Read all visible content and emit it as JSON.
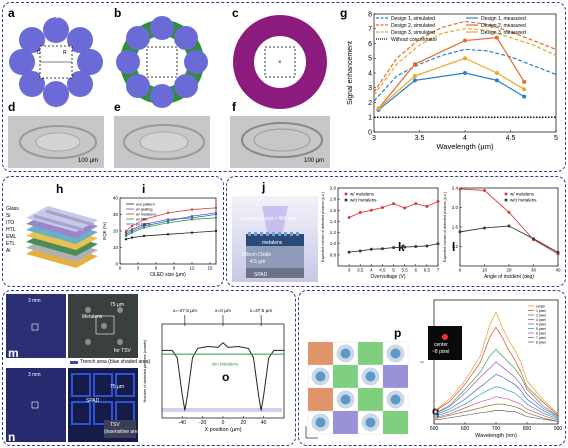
{
  "panel_labels": {
    "a": "a",
    "b": "b",
    "c": "c",
    "d": "d",
    "e": "e",
    "f": "f",
    "g": "g",
    "h": "h",
    "i": "i",
    "j": "j",
    "k": "k",
    "l": "l",
    "m": "m",
    "n": "n",
    "o": "o",
    "p": "p",
    "q": "q"
  },
  "panel_a": {
    "top_dim": "D=50 µm",
    "left_dim": "D",
    "right_dim": "R"
  },
  "scale_bar": "100 µm",
  "panel_h": {
    "layers": [
      "Glass",
      "Si",
      "ITO",
      "HTL",
      "EML",
      "ETL",
      "Al"
    ]
  },
  "panel_j": {
    "incident": "Incident photon / 404 nm",
    "metalens": "metalens",
    "silicon": "Silicon Oxide",
    "dims": "4.5 µm",
    "spad": "SPAD"
  },
  "panel_m": {
    "scale_small": "3 mm",
    "scale_large": "75 µm",
    "label": "Metalens",
    "sublabel": "for TSV",
    "legend": "Trench area (blue shaded area)"
  },
  "panel_n": {
    "scale_small": "3 mm",
    "scale_large": "75 µm",
    "spad": "SPAD",
    "tsv": "TSV",
    "tsv_sub": "(insensitive area)"
  },
  "panel_q_inset": {
    "center": "center",
    "shift": "~8 pixel"
  },
  "chart_data": [
    {
      "id": "g",
      "type": "line",
      "title": "",
      "xlabel": "Wavelength (µm)",
      "ylabel": "Signal enhancement",
      "xlim": [
        3,
        5
      ],
      "ylim": [
        0,
        8
      ],
      "xticks": [
        "3",
        "3.5",
        "4",
        "4.5",
        "5"
      ],
      "yticks": [
        "0",
        "1",
        "2",
        "3",
        "4",
        "5",
        "6",
        "7",
        "8"
      ],
      "legend": [
        "Design 1, simulated",
        "Design 2, simulated",
        "Design 3, simulated",
        "Without concentrator",
        "Design 1, measured",
        "Design 2, measured",
        "Design 3, measured"
      ],
      "colors": {
        "d1": "#2e80c8",
        "d2": "#e8692d",
        "d3": "#eaa72a",
        "base": "#111111"
      },
      "series": [
        {
          "name": "Design 1, simulated",
          "style": "dashed",
          "color": "#2e80c8",
          "x": [
            3,
            3.25,
            3.5,
            3.75,
            4,
            4.25,
            4.5,
            4.75,
            5
          ],
          "y": [
            2.1,
            3.8,
            4.6,
            5.2,
            5.6,
            5.5,
            5.1,
            4.5,
            3.9
          ]
        },
        {
          "name": "Design 2, simulated",
          "style": "dashed",
          "color": "#e8692d",
          "x": [
            3,
            3.25,
            3.5,
            3.75,
            4,
            4.25,
            4.5,
            4.75,
            5
          ],
          "y": [
            2.7,
            5.0,
            6.3,
            7.1,
            7.5,
            7.3,
            6.8,
            6.2,
            5.6
          ]
        },
        {
          "name": "Design 3, simulated",
          "style": "dashed",
          "color": "#eaa72a",
          "x": [
            3,
            3.25,
            3.5,
            3.75,
            4,
            4.25,
            4.5,
            4.75,
            5
          ],
          "y": [
            2.5,
            4.6,
            5.9,
            6.7,
            7.0,
            6.9,
            6.4,
            5.9,
            5.2
          ]
        },
        {
          "name": "Without concentrator",
          "style": "dotted",
          "color": "#111111",
          "x": [
            3,
            5
          ],
          "y": [
            1,
            1
          ]
        },
        {
          "name": "Design 1, measured",
          "style": "solid",
          "color": "#2e80c8",
          "x": [
            3.05,
            3.45,
            4.0,
            4.35,
            4.65
          ],
          "y": [
            1.5,
            3.5,
            4.0,
            3.5,
            2.4
          ]
        },
        {
          "name": "Design 2, measured",
          "style": "solid",
          "color": "#e8692d",
          "x": [
            3.05,
            3.45,
            4.0,
            4.35,
            4.65
          ],
          "y": [
            1.6,
            4.6,
            6.2,
            6.4,
            3.4
          ]
        },
        {
          "name": "Design 3, measured",
          "style": "solid",
          "color": "#eaa72a",
          "x": [
            3.05,
            3.45,
            4.0,
            4.35,
            4.65
          ],
          "y": [
            1.6,
            3.8,
            5.0,
            4.0,
            2.9
          ]
        }
      ]
    },
    {
      "id": "i",
      "type": "line",
      "xlabel": "OLED size (µm)",
      "ylabel": "EQE (%)",
      "xlim": [
        0,
        16
      ],
      "ylim": [
        0,
        40
      ],
      "xticks": [
        "0",
        "3",
        "6",
        "9",
        "12",
        "15"
      ],
      "yticks": [
        "0",
        "10",
        "20",
        "30",
        "40"
      ],
      "legend": [
        "w/o pattern",
        "w/ grating",
        "w/ metalens",
        "w/ FOL",
        "w/ DROL"
      ],
      "series": [
        {
          "name": "w/o pattern",
          "color": "#222222",
          "x": [
            1,
            2,
            4,
            8,
            12,
            16
          ],
          "y": [
            15,
            16,
            17,
            18,
            19,
            20
          ]
        },
        {
          "name": "w/ grating",
          "color": "#7b4fb0",
          "x": [
            1,
            2,
            4,
            8,
            12,
            16
          ],
          "y": [
            19,
            21,
            24,
            27,
            28,
            30
          ]
        },
        {
          "name": "w/ metalens",
          "color": "#d93b3b",
          "x": [
            1,
            2,
            4,
            8,
            12,
            16
          ],
          "y": [
            20,
            23,
            27,
            31,
            33,
            34
          ]
        },
        {
          "name": "w/ FOL",
          "color": "#2b9a4a",
          "x": [
            1,
            2,
            4,
            8,
            12,
            16
          ],
          "y": [
            17,
            19,
            22,
            25,
            27,
            28
          ]
        },
        {
          "name": "w/ DROL",
          "color": "#2a6fc0",
          "x": [
            1,
            2,
            4,
            8,
            12,
            16
          ],
          "y": [
            18,
            20,
            23,
            26,
            29,
            31
          ]
        }
      ]
    },
    {
      "id": "k",
      "type": "line",
      "xlabel": "Overvoltage (V)",
      "ylabel": "Expected number of detected photons (p.u.)",
      "xlim": [
        2.5,
        7
      ],
      "ylim": [
        0.6,
        2.0
      ],
      "xticks": [
        "3",
        "3.5",
        "4",
        "4.5",
        "5",
        "5.5",
        "6",
        "6.5",
        "7"
      ],
      "yticks": [
        "0.8",
        "1.0",
        "1.2",
        "1.4",
        "1.6",
        "1.8",
        "2.0"
      ],
      "legend": [
        "w/ metalens",
        "w/o metalens"
      ],
      "series": [
        {
          "name": "w/ metalens",
          "color": "#d93b3b",
          "x": [
            3,
            3.5,
            4,
            4.5,
            5,
            5.5,
            6,
            6.5,
            7
          ],
          "y": [
            1.47,
            1.56,
            1.6,
            1.65,
            1.72,
            1.64,
            1.72,
            1.67,
            1.76
          ]
        },
        {
          "name": "w/o metalens",
          "color": "#3a3a3a",
          "x": [
            3,
            3.5,
            4,
            4.5,
            5,
            5.5,
            6,
            6.5,
            7
          ],
          "y": [
            0.85,
            0.87,
            0.9,
            0.91,
            0.93,
            0.94,
            0.95,
            0.96,
            1.0
          ]
        }
      ]
    },
    {
      "id": "l",
      "type": "line",
      "xlabel": "Angle of incident (deg)",
      "ylabel": "Expected number of detected photons (p.u.)",
      "xlim": [
        0,
        40
      ],
      "ylim": [
        0.8,
        2.4
      ],
      "xticks": [
        "0",
        "10",
        "20",
        "30",
        "40"
      ],
      "yticks": [
        "1.2",
        "1.6",
        "2.0",
        "2.4"
      ],
      "legend": [
        "w/ metalens",
        "w/o metalens"
      ],
      "series": [
        {
          "name": "w/ metalens",
          "color": "#d93b3b",
          "x": [
            0,
            10,
            20,
            30,
            40
          ],
          "y": [
            2.38,
            2.35,
            1.9,
            1.34,
            1.05
          ]
        },
        {
          "name": "w/o metalens",
          "color": "#3a3a3a",
          "x": [
            0,
            10,
            20,
            30,
            40
          ],
          "y": [
            1.5,
            1.58,
            1.62,
            1.36,
            1.08
          ]
        }
      ]
    },
    {
      "id": "o",
      "type": "line",
      "xlabel": "X position (µm)",
      "ylabel": "Number of detected photons (counts)",
      "xlim": [
        -60,
        60
      ],
      "ylim": [
        1500,
        1750
      ],
      "xticks": [
        "-40",
        "-20",
        "0",
        "20",
        "40"
      ],
      "annotations": [
        "x=-37.5 µm",
        "x=0 µm",
        "x=37.5 µm",
        "w/o Metalens"
      ],
      "series": [
        {
          "name": "",
          "color": "#222222",
          "x": [
            -60,
            -50,
            -45,
            -40,
            -37.5,
            -35,
            -30,
            -25,
            -15,
            -5,
            0,
            5,
            15,
            25,
            30,
            35,
            37.5,
            40,
            45,
            50,
            60
          ],
          "y": [
            1680,
            1680,
            1660,
            1560,
            1520,
            1560,
            1660,
            1685,
            1690,
            1688,
            1700,
            1688,
            1690,
            1685,
            1660,
            1560,
            1520,
            1560,
            1660,
            1680,
            1680
          ]
        },
        {
          "name": "w/o Metalens",
          "color": "#2b9a4a",
          "x": [
            -60,
            60
          ],
          "y": [
            1670,
            1670
          ]
        }
      ]
    },
    {
      "id": "q",
      "type": "line",
      "xlabel": "Wavelength (nm)",
      "ylabel": "I",
      "xlim": [
        500,
        900
      ],
      "ylim": [
        0,
        1
      ],
      "xticks": [
        "500",
        "600",
        "700",
        "800",
        "900"
      ],
      "legend": [
        "center",
        "1 pixel",
        "2 pixel",
        "3 pixel",
        "4 pixel",
        "5 pixel",
        "6 pixel",
        "7 pixel",
        "8 pixel"
      ],
      "series": [
        {
          "name": "center",
          "color": "#e0a030",
          "x": [
            500,
            550,
            600,
            650,
            680,
            700,
            720,
            740,
            760,
            780,
            800,
            850,
            900
          ],
          "y": [
            0.1,
            0.2,
            0.35,
            0.55,
            0.8,
            0.9,
            0.78,
            0.68,
            0.6,
            0.5,
            0.35,
            0.2,
            0.08
          ]
        },
        {
          "name": "1 pixel",
          "color": "#d05030",
          "x": [
            500,
            550,
            600,
            650,
            680,
            700,
            720,
            740,
            760,
            780,
            800,
            850,
            900
          ],
          "y": [
            0.1,
            0.18,
            0.32,
            0.5,
            0.7,
            0.78,
            0.7,
            0.6,
            0.52,
            0.42,
            0.3,
            0.18,
            0.07
          ]
        },
        {
          "name": "2 pixel",
          "color": "#3aa050",
          "x": [
            500,
            550,
            600,
            650,
            680,
            700,
            720,
            740,
            760,
            780,
            800,
            850,
            900
          ],
          "y": [
            0.08,
            0.15,
            0.28,
            0.42,
            0.55,
            0.6,
            0.55,
            0.5,
            0.45,
            0.38,
            0.28,
            0.15,
            0.06
          ]
        },
        {
          "name": "3 pixel",
          "color": "#9b59b6",
          "x": [
            500,
            550,
            600,
            650,
            680,
            700,
            720,
            740,
            760,
            780,
            800,
            850,
            900
          ],
          "y": [
            0.08,
            0.14,
            0.25,
            0.38,
            0.45,
            0.5,
            0.46,
            0.42,
            0.38,
            0.32,
            0.24,
            0.13,
            0.06
          ]
        },
        {
          "name": "4 pixel",
          "color": "#4a6fd0",
          "x": [
            500,
            550,
            600,
            650,
            680,
            700,
            720,
            740,
            760,
            780,
            800,
            850,
            900
          ],
          "y": [
            0.07,
            0.12,
            0.2,
            0.3,
            0.36,
            0.4,
            0.38,
            0.35,
            0.32,
            0.27,
            0.2,
            0.11,
            0.05
          ]
        },
        {
          "name": "5 pixel",
          "color": "#2a9aa8",
          "x": [
            500,
            550,
            600,
            650,
            680,
            700,
            720,
            740,
            760,
            780,
            800,
            850,
            900
          ],
          "y": [
            0.06,
            0.1,
            0.16,
            0.24,
            0.28,
            0.3,
            0.29,
            0.27,
            0.25,
            0.21,
            0.16,
            0.09,
            0.04
          ]
        },
        {
          "name": "6 pixel",
          "color": "#c05a9a",
          "x": [
            500,
            550,
            600,
            650,
            680,
            700,
            720,
            740,
            760,
            780,
            800,
            850,
            900
          ],
          "y": [
            0.05,
            0.08,
            0.13,
            0.18,
            0.2,
            0.22,
            0.21,
            0.2,
            0.18,
            0.16,
            0.12,
            0.07,
            0.03
          ]
        },
        {
          "name": "7 pixel",
          "color": "#8a7a2a",
          "x": [
            500,
            550,
            600,
            650,
            680,
            700,
            720,
            740,
            760,
            780,
            800,
            850,
            900
          ],
          "y": [
            0.04,
            0.07,
            0.1,
            0.13,
            0.15,
            0.16,
            0.16,
            0.15,
            0.14,
            0.12,
            0.09,
            0.05,
            0.02
          ]
        },
        {
          "name": "8 pixel",
          "color": "#6a6a6a",
          "x": [
            500,
            550,
            600,
            650,
            680,
            700,
            720,
            740,
            760,
            780,
            800,
            850,
            900
          ],
          "y": [
            0.03,
            0.05,
            0.07,
            0.09,
            0.1,
            0.11,
            0.11,
            0.1,
            0.1,
            0.08,
            0.06,
            0.04,
            0.02
          ]
        }
      ]
    }
  ]
}
